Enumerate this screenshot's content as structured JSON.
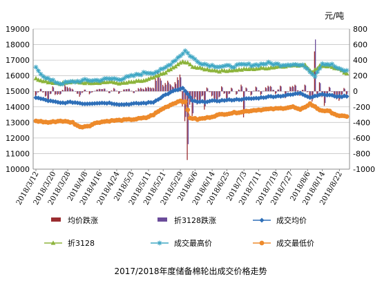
{
  "caption": "2017/2018年度储备棉轮出成交价格走势",
  "unit_label": "元/吨",
  "colors": {
    "change_avg": "#9B2D30",
    "change_3128": "#6B4C9A",
    "avg_price": "#2E6FB8",
    "price_3128": "#8DB43C",
    "max_price": "#3FA7C4",
    "min_price": "#ED8A2B",
    "grid": "#c6c6c6",
    "axis": "#8c8c8c"
  },
  "chart_data": {
    "type": "line",
    "x_tick_labels": [
      "2018/3/12",
      "2018/3/20",
      "2018/3/28",
      "2018/4/8",
      "2018/4/16",
      "2018/4/24",
      "2018/5/3",
      "2018/5/11",
      "2018/5/21",
      "2018/5/29",
      "2018/6/6",
      "2018/6/14",
      "2018/6/25",
      "2018/7/3",
      "2018/7/11",
      "2018/7/19",
      "2018/7/27",
      "2018/8/6",
      "2018/8/14",
      "2018/8/22"
    ],
    "left_axis": {
      "min": 10000,
      "max": 19000,
      "step": 1000,
      "ticks": [
        "10000",
        "11000",
        "12000",
        "13000",
        "14000",
        "15000",
        "16000",
        "17000",
        "18000",
        "19000"
      ]
    },
    "right_axis": {
      "min": -1000,
      "max": 800,
      "step": 200,
      "ticks": [
        "-1000",
        "-800",
        "-600",
        "-400",
        "-200",
        "0",
        "200",
        "400",
        "600",
        "800"
      ]
    },
    "legend": [
      {
        "key": "change_avg",
        "label": "均价跌涨",
        "marker": "bar"
      },
      {
        "key": "change_3128",
        "label": "折3128跌涨",
        "marker": "bar"
      },
      {
        "key": "avg_price",
        "label": "成交均价",
        "marker": "diamond"
      },
      {
        "key": "price_3128",
        "label": "折3128",
        "marker": "triangle"
      },
      {
        "key": "max_price",
        "label": "成交最高价",
        "marker": "star"
      },
      {
        "key": "min_price",
        "label": "成交最低价",
        "marker": "circle"
      }
    ],
    "series_notes": "Daily auction values; left axis = prices (元/吨), right axis = daily changes (元/吨). Key points read off the chart, interpolated between.",
    "series": {
      "avg_price": [
        [
          0,
          14600
        ],
        [
          5,
          14400
        ],
        [
          10,
          14250
        ],
        [
          15,
          14300
        ],
        [
          20,
          14200
        ],
        [
          25,
          14250
        ],
        [
          30,
          14250
        ],
        [
          35,
          14150
        ],
        [
          40,
          14200
        ],
        [
          45,
          14250
        ],
        [
          48,
          14300
        ],
        [
          52,
          14700
        ],
        [
          56,
          15000
        ],
        [
          60,
          15200
        ],
        [
          62,
          14800
        ],
        [
          64,
          14400
        ],
        [
          66,
          14300
        ],
        [
          70,
          14350
        ],
        [
          75,
          14400
        ],
        [
          80,
          14450
        ],
        [
          85,
          14500
        ],
        [
          90,
          14550
        ],
        [
          95,
          14650
        ],
        [
          100,
          14700
        ],
        [
          105,
          14800
        ],
        [
          108,
          14900
        ],
        [
          112,
          14600
        ],
        [
          116,
          14800
        ],
        [
          120,
          14750
        ],
        [
          124,
          14650
        ],
        [
          127,
          14700
        ]
      ],
      "price_3128": [
        [
          0,
          15800
        ],
        [
          5,
          15600
        ],
        [
          10,
          15500
        ],
        [
          15,
          15600
        ],
        [
          20,
          15550
        ],
        [
          25,
          15550
        ],
        [
          30,
          15600
        ],
        [
          35,
          15500
        ],
        [
          40,
          15600
        ],
        [
          45,
          15700
        ],
        [
          50,
          16000
        ],
        [
          54,
          16300
        ],
        [
          58,
          16700
        ],
        [
          60,
          16900
        ],
        [
          62,
          16800
        ],
        [
          64,
          16600
        ],
        [
          66,
          16500
        ],
        [
          70,
          16400
        ],
        [
          75,
          16300
        ],
        [
          80,
          16350
        ],
        [
          85,
          16400
        ],
        [
          90,
          16450
        ],
        [
          95,
          16500
        ],
        [
          100,
          16600
        ],
        [
          105,
          16650
        ],
        [
          110,
          16700
        ],
        [
          113,
          16200
        ],
        [
          116,
          16650
        ],
        [
          120,
          16600
        ],
        [
          124,
          16400
        ],
        [
          127,
          16100
        ]
      ],
      "max_price": [
        [
          0,
          16500
        ],
        [
          3,
          16000
        ],
        [
          6,
          15700
        ],
        [
          10,
          15500
        ],
        [
          15,
          15600
        ],
        [
          20,
          15700
        ],
        [
          25,
          15700
        ],
        [
          30,
          15800
        ],
        [
          35,
          15800
        ],
        [
          40,
          16000
        ],
        [
          45,
          16200
        ],
        [
          48,
          16200
        ],
        [
          52,
          16400
        ],
        [
          56,
          16900
        ],
        [
          59,
          17300
        ],
        [
          61,
          17600
        ],
        [
          63,
          17300
        ],
        [
          66,
          16900
        ],
        [
          70,
          16700
        ],
        [
          75,
          16600
        ],
        [
          80,
          16600
        ],
        [
          85,
          16700
        ],
        [
          90,
          16700
        ],
        [
          95,
          16800
        ],
        [
          100,
          16700
        ],
        [
          105,
          16750
        ],
        [
          110,
          16600
        ],
        [
          114,
          16000
        ],
        [
          117,
          16800
        ],
        [
          121,
          16700
        ],
        [
          124,
          16400
        ],
        [
          127,
          16300
        ]
      ],
      "min_price": [
        [
          0,
          13100
        ],
        [
          5,
          13000
        ],
        [
          10,
          13100
        ],
        [
          15,
          13000
        ],
        [
          18,
          12700
        ],
        [
          22,
          12800
        ],
        [
          25,
          13000
        ],
        [
          30,
          13100
        ],
        [
          35,
          13150
        ],
        [
          40,
          13200
        ],
        [
          45,
          13300
        ],
        [
          48,
          13500
        ],
        [
          52,
          13900
        ],
        [
          56,
          14200
        ],
        [
          59,
          14400
        ],
        [
          61,
          14300
        ],
        [
          63,
          13300
        ],
        [
          66,
          13200
        ],
        [
          70,
          13300
        ],
        [
          75,
          13500
        ],
        [
          80,
          13600
        ],
        [
          85,
          13700
        ],
        [
          90,
          13800
        ],
        [
          95,
          13850
        ],
        [
          100,
          13900
        ],
        [
          105,
          14000
        ],
        [
          108,
          13800
        ],
        [
          112,
          14200
        ],
        [
          116,
          13800
        ],
        [
          120,
          13700
        ],
        [
          124,
          13400
        ],
        [
          127,
          13400
        ]
      ],
      "change_avg": [
        [
          0,
          -60
        ],
        [
          2,
          30
        ],
        [
          4,
          -60
        ],
        [
          5,
          -120
        ],
        [
          7,
          50
        ],
        [
          8,
          -40
        ],
        [
          10,
          -40
        ],
        [
          12,
          70
        ],
        [
          15,
          30
        ],
        [
          17,
          -30
        ],
        [
          18,
          -60
        ],
        [
          20,
          20
        ],
        [
          22,
          -30
        ],
        [
          25,
          20
        ],
        [
          28,
          30
        ],
        [
          30,
          -20
        ],
        [
          32,
          40
        ],
        [
          34,
          -30
        ],
        [
          36,
          20
        ],
        [
          38,
          30
        ],
        [
          40,
          -20
        ],
        [
          42,
          40
        ],
        [
          44,
          30
        ],
        [
          46,
          50
        ],
        [
          48,
          40
        ],
        [
          49,
          150
        ],
        [
          50,
          200
        ],
        [
          52,
          80
        ],
        [
          54,
          120
        ],
        [
          56,
          60
        ],
        [
          58,
          150
        ],
        [
          59,
          180
        ],
        [
          60,
          -150
        ],
        [
          61,
          -350
        ],
        [
          62,
          -780
        ],
        [
          63,
          -150
        ],
        [
          64,
          -280
        ],
        [
          65,
          -80
        ],
        [
          66,
          -150
        ],
        [
          67,
          -120
        ],
        [
          68,
          -60
        ],
        [
          69,
          -220
        ],
        [
          70,
          40
        ],
        [
          72,
          -60
        ],
        [
          74,
          -120
        ],
        [
          75,
          -60
        ],
        [
          76,
          50
        ],
        [
          78,
          -100
        ],
        [
          80,
          40
        ],
        [
          82,
          -40
        ],
        [
          84,
          80
        ],
        [
          85,
          -300
        ],
        [
          86,
          40
        ],
        [
          88,
          -50
        ],
        [
          90,
          60
        ],
        [
          92,
          -40
        ],
        [
          94,
          50
        ],
        [
          96,
          60
        ],
        [
          98,
          -30
        ],
        [
          100,
          70
        ],
        [
          102,
          -70
        ],
        [
          104,
          60
        ],
        [
          106,
          70
        ],
        [
          108,
          -50
        ],
        [
          110,
          80
        ],
        [
          112,
          -100
        ],
        [
          113,
          -130
        ],
        [
          114,
          500
        ],
        [
          115,
          -60
        ],
        [
          116,
          100
        ],
        [
          117,
          -60
        ],
        [
          118,
          -150
        ],
        [
          120,
          50
        ],
        [
          122,
          -60
        ],
        [
          124,
          -120
        ],
        [
          126,
          40
        ],
        [
          127,
          -40
        ]
      ],
      "change_3128": [
        [
          0,
          -40
        ],
        [
          2,
          30
        ],
        [
          4,
          -50
        ],
        [
          5,
          -100
        ],
        [
          7,
          40
        ],
        [
          8,
          -30
        ],
        [
          10,
          -30
        ],
        [
          12,
          50
        ],
        [
          15,
          20
        ],
        [
          17,
          -30
        ],
        [
          18,
          -40
        ],
        [
          20,
          20
        ],
        [
          22,
          -20
        ],
        [
          25,
          20
        ],
        [
          28,
          30
        ],
        [
          30,
          -20
        ],
        [
          32,
          30
        ],
        [
          34,
          -20
        ],
        [
          36,
          20
        ],
        [
          38,
          30
        ],
        [
          40,
          -20
        ],
        [
          42,
          30
        ],
        [
          44,
          20
        ],
        [
          46,
          40
        ],
        [
          48,
          30
        ],
        [
          49,
          120
        ],
        [
          50,
          170
        ],
        [
          52,
          60
        ],
        [
          54,
          100
        ],
        [
          56,
          50
        ],
        [
          58,
          120
        ],
        [
          59,
          150
        ],
        [
          60,
          -120
        ],
        [
          61,
          -300
        ],
        [
          62,
          -600
        ],
        [
          63,
          -120
        ],
        [
          64,
          -250
        ],
        [
          65,
          -60
        ],
        [
          66,
          -120
        ],
        [
          67,
          -100
        ],
        [
          68,
          -50
        ],
        [
          69,
          -180
        ],
        [
          70,
          30
        ],
        [
          72,
          -50
        ],
        [
          74,
          -100
        ],
        [
          75,
          -50
        ],
        [
          76,
          40
        ],
        [
          78,
          -80
        ],
        [
          80,
          30
        ],
        [
          82,
          -30
        ],
        [
          84,
          60
        ],
        [
          85,
          -250
        ],
        [
          86,
          30
        ],
        [
          88,
          -40
        ],
        [
          90,
          50
        ],
        [
          92,
          -30
        ],
        [
          94,
          40
        ],
        [
          96,
          50
        ],
        [
          98,
          -20
        ],
        [
          100,
          60
        ],
        [
          102,
          -60
        ],
        [
          104,
          50
        ],
        [
          106,
          60
        ],
        [
          108,
          -40
        ],
        [
          110,
          70
        ],
        [
          112,
          -80
        ],
        [
          113,
          -100
        ],
        [
          114,
          650
        ],
        [
          115,
          -50
        ],
        [
          116,
          90
        ],
        [
          117,
          -50
        ],
        [
          118,
          -120
        ],
        [
          120,
          40
        ],
        [
          122,
          -50
        ],
        [
          124,
          -100
        ],
        [
          126,
          30
        ],
        [
          127,
          -30
        ]
      ]
    },
    "n_points": 128,
    "grid": "horizontal",
    "legend_position": "bottom"
  }
}
